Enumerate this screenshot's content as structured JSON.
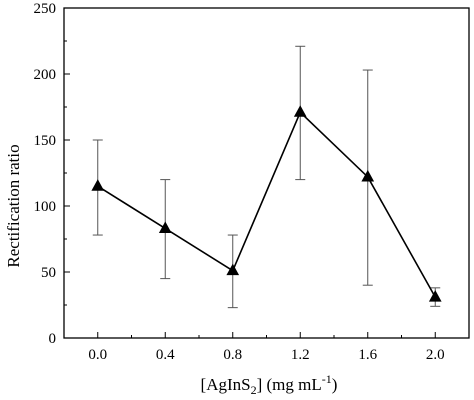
{
  "chart_data": {
    "type": "line",
    "title": "",
    "xlabel": "[AgInS₂] (mg mL⁻¹)",
    "xlabel_parts": {
      "main": "[AgInS",
      "sub": "2",
      "rest": "] (mg mL",
      "sup": "-1",
      "close": ")"
    },
    "ylabel": "Rectification ratio",
    "xlim": [
      -0.2,
      2.2
    ],
    "ylim": [
      0,
      250
    ],
    "xticks": [
      "0.0",
      "0.4",
      "0.8",
      "1.2",
      "1.6",
      "2.0"
    ],
    "yticks": [
      "0",
      "50",
      "100",
      "150",
      "200",
      "250"
    ],
    "grid": false,
    "series": [
      {
        "marker": "triangle",
        "color": "#000000",
        "x": [
          0.0,
          0.4,
          0.8,
          1.2,
          1.6,
          2.0
        ],
        "y": [
          115,
          83,
          51,
          171,
          122,
          31
        ],
        "err_low": [
          78,
          45,
          23,
          120,
          40,
          24
        ],
        "err_high": [
          150,
          120,
          78,
          221,
          203,
          38
        ]
      }
    ]
  }
}
